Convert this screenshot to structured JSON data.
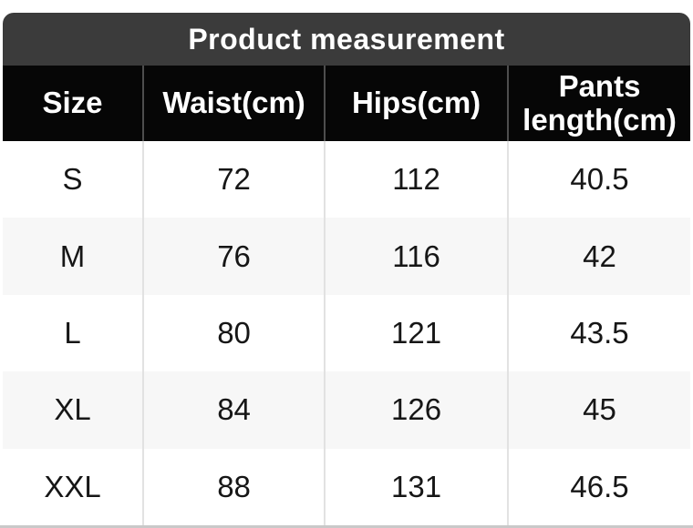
{
  "chart_data": {
    "type": "table",
    "title": "Product measurement",
    "columns": [
      "Size",
      "Waist(cm)",
      "Hips(cm)",
      "Pants length(cm)"
    ],
    "rows": [
      [
        "S",
        "72",
        "112",
        "40.5"
      ],
      [
        "M",
        "76",
        "116",
        "42"
      ],
      [
        "L",
        "80",
        "121",
        "43.5"
      ],
      [
        "XL",
        "84",
        "126",
        "45"
      ],
      [
        "XXL",
        "88",
        "131",
        "46.5"
      ]
    ],
    "layout_hints": {
      "row_striping": "white / light-gray alternating",
      "header_position": "top",
      "title_position": "top banner"
    }
  },
  "colors": {
    "title_bar_bg": "#3b3b3b",
    "title_text": "#ffffff",
    "header_bg": "#060606",
    "header_text": "#ffffff",
    "row_bg": "#ffffff",
    "row_alt_bg": "#f7f7f7",
    "cell_text": "#161616",
    "divider_body": "#e2e2e2",
    "divider_header": "#4d4d4d",
    "bottom_bar": "#c9c9c9"
  }
}
